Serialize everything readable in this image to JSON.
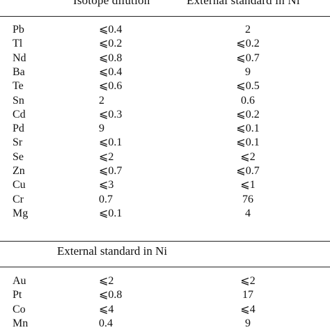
{
  "headers": {
    "left": "Isotope dilution",
    "right": "External standard in Ni"
  },
  "section1": [
    {
      "element": "Pb",
      "isotope": "⩽0.4",
      "external": "2"
    },
    {
      "element": "Tl",
      "isotope": "⩽0.2",
      "external": "⩽0.2"
    },
    {
      "element": "Nd",
      "isotope": "⩽0.8",
      "external": "⩽0.7"
    },
    {
      "element": "Ba",
      "isotope": "⩽0.4",
      "external": "9"
    },
    {
      "element": "Te",
      "isotope": "⩽0.6",
      "external": "⩽0.5"
    },
    {
      "element": "Sn",
      "isotope": "2",
      "external": "0.6"
    },
    {
      "element": "Cd",
      "isotope": "⩽0.3",
      "external": "⩽0.2"
    },
    {
      "element": "Pd",
      "isotope": "9",
      "external": "⩽0.1"
    },
    {
      "element": "Sr",
      "isotope": "⩽0.1",
      "external": "⩽0.1"
    },
    {
      "element": "Se",
      "isotope": "⩽2",
      "external": "⩽2"
    },
    {
      "element": "Zn",
      "isotope": "⩽0.7",
      "external": "⩽0.7"
    },
    {
      "element": "Cu",
      "isotope": "⩽3",
      "external": "⩽1"
    },
    {
      "element": "Cr",
      "isotope": "0.7",
      "external": "76"
    },
    {
      "element": "Mg",
      "isotope": "⩽0.1",
      "external": "4"
    }
  ],
  "section2_title": "External standard in Ni",
  "section2": [
    {
      "element": "Au",
      "isotope": "⩽2",
      "external": "⩽2"
    },
    {
      "element": "Pt",
      "isotope": "⩽0.8",
      "external": "17"
    },
    {
      "element": "Co",
      "isotope": "⩽4",
      "external": "⩽4"
    },
    {
      "element": "Mn",
      "isotope": "0.4",
      "external": "9"
    }
  ]
}
